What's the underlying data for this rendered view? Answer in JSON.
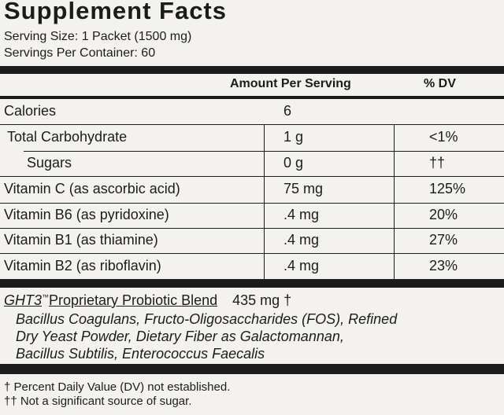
{
  "title": "Supplement Facts",
  "serving_size": "Serving Size: 1 Packet (1500 mg)",
  "servings_per_container": "Servings Per Container: 60",
  "header": {
    "amount": "Amount Per Serving",
    "dv": "% DV"
  },
  "rows": [
    {
      "label": "Calories",
      "amount": "6",
      "dv": null
    },
    {
      "label": "Total Carbohydrate",
      "amount": "1 g",
      "dv": "<1%"
    },
    {
      "label": "Sugars",
      "amount": "0 g",
      "dv": "††"
    },
    {
      "label": "Vitamin C (as ascorbic acid)",
      "amount": "75 mg",
      "dv": "125%"
    },
    {
      "label": "Vitamin B6 (as pyridoxine)",
      "amount": ".4 mg",
      "dv": "20%"
    },
    {
      "label": "Vitamin B1 (as thiamine)",
      "amount": ".4 mg",
      "dv": "27%"
    },
    {
      "label": "Vitamin B2 (as riboflavin)",
      "amount": ".4 mg",
      "dv": "23%"
    }
  ],
  "blend": {
    "brand": "GHT3",
    "trademark": "™",
    "name": "Proprietary Probiotic Blend",
    "amount": "435 mg †",
    "ingredients": [
      "Bacillus Coagulans, Fructo-Oligosaccharides (FOS), Refined",
      "Dry Yeast Powder, Dietary Fiber as Galactomannan,",
      "Bacillus Subtilis, Enterococcus Faecalis"
    ]
  },
  "footnotes": [
    "†  Percent Daily Value (DV) not established.",
    "†† Not a significant source of sugar."
  ]
}
